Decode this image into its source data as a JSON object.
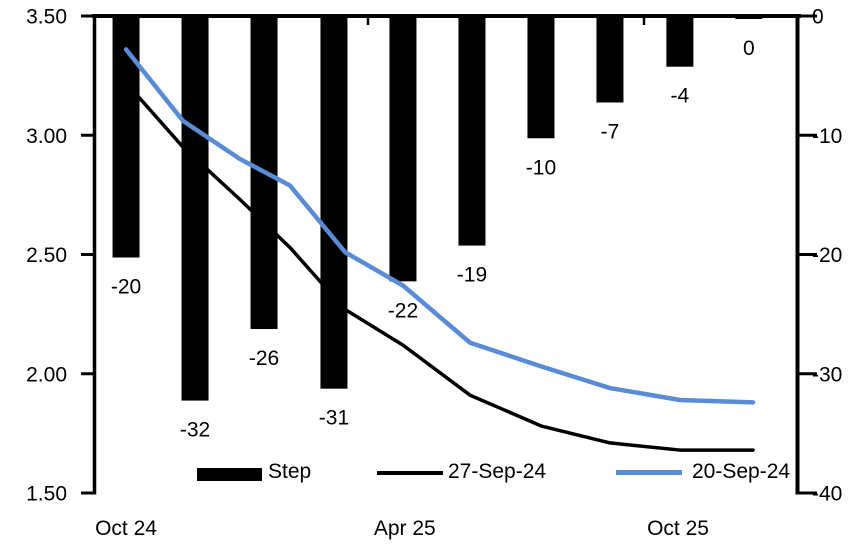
{
  "chart_data": {
    "type": "combo",
    "title": "",
    "left_axis": {
      "min": 1.5,
      "max": 3.5,
      "ticks": [
        3.5,
        3.0,
        2.5,
        2.0,
        1.5
      ],
      "tick_labels": [
        "3.50",
        "3.00",
        "2.50",
        "2.00",
        "1.50"
      ]
    },
    "right_axis": {
      "min": -40,
      "max": 0,
      "ticks": [
        0,
        -10,
        -20,
        -30,
        -40
      ],
      "tick_labels": [
        "0",
        "-10",
        "-20",
        "-30",
        "-40"
      ]
    },
    "x_axis": {
      "range_months": [
        0,
        15.3
      ],
      "tick_months": [
        6,
        12
      ],
      "labels": [
        {
          "text": "Oct 24",
          "month": 0.74
        },
        {
          "text": "Apr 25",
          "month": 6.8
        },
        {
          "text": "Oct 25",
          "month": 12.74
        }
      ]
    },
    "bars": {
      "name": "Step",
      "axis": "right",
      "color": "#000000",
      "points": [
        {
          "month": 0.74,
          "value": -20
        },
        {
          "month": 2.24,
          "value": -32
        },
        {
          "month": 3.74,
          "value": -26
        },
        {
          "month": 5.26,
          "value": -31
        },
        {
          "month": 6.76,
          "value": -22
        },
        {
          "month": 8.26,
          "value": -19
        },
        {
          "month": 9.76,
          "value": -10
        },
        {
          "month": 11.26,
          "value": -7
        },
        {
          "month": 12.78,
          "value": -4
        },
        {
          "month": 14.28,
          "value": 0
        }
      ]
    },
    "series": [
      {
        "name": "27-Sep-24",
        "axis": "left",
        "color": "#000000",
        "stroke_width": 3.5,
        "x_months": [
          0.74,
          1.98,
          3.22,
          4.3,
          5.5,
          6.76,
          8.22,
          9.78,
          11.26,
          12.78,
          14.37
        ],
        "values": [
          3.22,
          2.95,
          2.73,
          2.53,
          2.27,
          2.12,
          1.91,
          1.78,
          1.71,
          1.68,
          1.68
        ]
      },
      {
        "name": "20-Sep-24",
        "axis": "left",
        "color": "#5A8BD5",
        "stroke_width": 4.5,
        "x_months": [
          0.74,
          1.98,
          3.22,
          4.3,
          5.5,
          6.76,
          8.22,
          9.78,
          11.26,
          12.78,
          14.37
        ],
        "values": [
          3.36,
          3.06,
          2.9,
          2.79,
          2.51,
          2.37,
          2.13,
          2.03,
          1.94,
          1.89,
          1.88
        ]
      }
    ],
    "legend": {
      "position": "bottom",
      "items": [
        "Step",
        "27-Sep-24",
        "20-Sep-24"
      ]
    }
  }
}
